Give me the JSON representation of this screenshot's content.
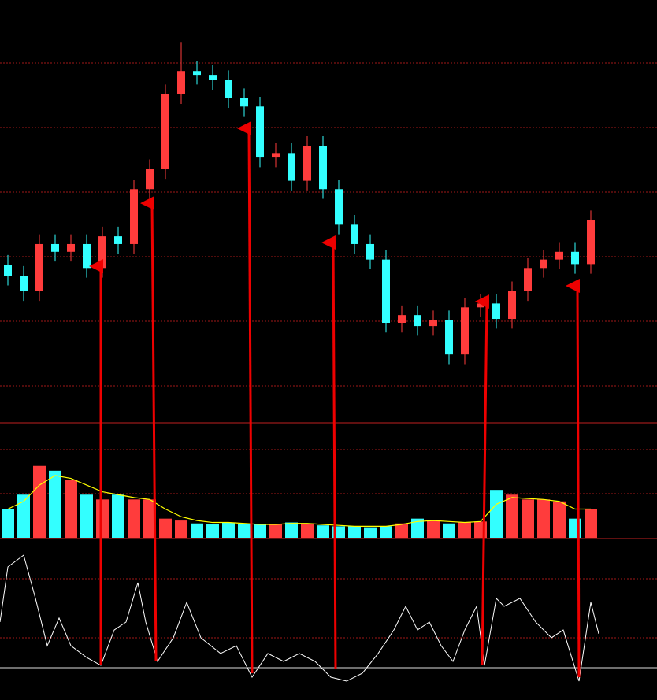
{
  "chart_data": [
    {
      "type": "candlestick",
      "xlim": [
        0,
        834
      ],
      "ylim": [
        5,
        70
      ],
      "up_color": "#ff3c3c",
      "down_color": "#33ffff",
      "x": [
        10,
        30,
        50,
        70,
        90,
        110,
        130,
        150,
        170,
        190,
        210,
        230,
        250,
        270,
        290,
        310,
        330,
        350,
        370,
        390,
        410,
        430,
        450,
        470,
        490,
        510,
        530,
        550,
        570,
        590,
        610,
        630,
        650,
        670,
        690,
        710,
        730,
        750
      ],
      "open": [
        29.0,
        27.3,
        24.9,
        32.2,
        31.0,
        32.2,
        28.5,
        33.4,
        32.2,
        40.7,
        43.8,
        55.4,
        59.0,
        58.4,
        57.6,
        54.8,
        53.5,
        45.6,
        46.3,
        42.0,
        47.4,
        40.7,
        35.2,
        32.2,
        29.8,
        20.0,
        21.2,
        19.5,
        20.4,
        15.1,
        22.4,
        23.0,
        20.6,
        24.9,
        28.5,
        29.8,
        31.0,
        29.1
      ],
      "high": [
        30.5,
        28.8,
        33.7,
        33.7,
        33.7,
        33.7,
        34.9,
        34.9,
        42.2,
        45.3,
        56.9,
        63.5,
        60.5,
        59.9,
        59.1,
        56.3,
        55.0,
        47.8,
        47.8,
        48.9,
        48.9,
        42.2,
        36.7,
        33.7,
        31.3,
        22.7,
        22.7,
        21.9,
        21.9,
        23.9,
        24.5,
        24.5,
        26.4,
        30.0,
        31.3,
        32.5,
        32.5,
        37.4
      ],
      "low": [
        25.8,
        23.4,
        23.4,
        29.5,
        29.5,
        27.0,
        27.0,
        30.7,
        30.7,
        39.2,
        42.3,
        53.9,
        56.9,
        56.1,
        53.3,
        52.0,
        44.1,
        44.1,
        40.5,
        40.5,
        39.2,
        33.7,
        30.7,
        28.3,
        18.5,
        18.5,
        18.0,
        18.0,
        13.6,
        13.6,
        20.9,
        19.1,
        19.1,
        23.4,
        27.0,
        28.3,
        27.6,
        27.6
      ],
      "close": [
        27.3,
        24.9,
        32.2,
        31.0,
        32.2,
        28.5,
        33.4,
        32.2,
        40.7,
        43.8,
        55.4,
        59.0,
        58.4,
        57.6,
        54.8,
        53.5,
        45.6,
        46.3,
        42.0,
        47.4,
        40.7,
        35.2,
        32.2,
        29.8,
        20.0,
        21.2,
        19.5,
        20.4,
        15.1,
        22.4,
        23.0,
        20.6,
        24.9,
        28.5,
        29.8,
        31.0,
        29.1,
        35.9
      ]
    },
    {
      "type": "bar",
      "xlim": [
        0,
        834
      ],
      "ylim": [
        0,
        120
      ],
      "x": [
        10,
        30,
        50,
        70,
        90,
        110,
        130,
        150,
        170,
        190,
        210,
        230,
        250,
        270,
        290,
        310,
        330,
        350,
        370,
        390,
        410,
        430,
        450,
        470,
        490,
        510,
        530,
        550,
        570,
        590,
        610,
        630,
        650,
        670,
        690,
        710,
        730,
        750
      ],
      "series": [
        {
          "type": "bar",
          "values": [
            30,
            45,
            75,
            70,
            60,
            45,
            40,
            45,
            40,
            40,
            20,
            18,
            15,
            14,
            16,
            14,
            14,
            14,
            16,
            15,
            13,
            12,
            12,
            11,
            12,
            15,
            20,
            18,
            15,
            16,
            17,
            50,
            45,
            40,
            40,
            38,
            20,
            30
          ],
          "colors": [
            "#33ffff",
            "#33ffff",
            "#ff3c3c",
            "#33ffff",
            "#ff3c3c",
            "#33ffff",
            "#ff3c3c",
            "#33ffff",
            "#ff3c3c",
            "#ff3c3c",
            "#ff3c3c",
            "#ff3c3c",
            "#33ffff",
            "#33ffff",
            "#33ffff",
            "#33ffff",
            "#33ffff",
            "#ff3c3c",
            "#33ffff",
            "#ff3c3c",
            "#33ffff",
            "#33ffff",
            "#33ffff",
            "#33ffff",
            "#33ffff",
            "#ff3c3c",
            "#33ffff",
            "#ff3c3c",
            "#33ffff",
            "#ff3c3c",
            "#ff3c3c",
            "#33ffff",
            "#ff3c3c",
            "#ff3c3c",
            "#ff3c3c",
            "#ff3c3c",
            "#33ffff",
            "#ff3c3c"
          ]
        },
        {
          "type": "line",
          "color": "#ffff00",
          "values": [
            30,
            38,
            55,
            65,
            62,
            55,
            48,
            45,
            42,
            40,
            30,
            22,
            18,
            16,
            16,
            15,
            14,
            14,
            15,
            15,
            14,
            13,
            12,
            12,
            12,
            14,
            17,
            18,
            17,
            16,
            17,
            35,
            42,
            41,
            40,
            38,
            30,
            30
          ]
        }
      ]
    },
    {
      "type": "line",
      "xlim": [
        0,
        834
      ],
      "ylim": [
        -20,
        100
      ],
      "color": "#ffffff",
      "x": [
        0,
        10,
        30,
        45,
        60,
        75,
        90,
        110,
        128,
        145,
        160,
        175,
        185,
        200,
        220,
        237,
        255,
        280,
        300,
        320,
        340,
        360,
        380,
        400,
        420,
        440,
        460,
        480,
        500,
        515,
        530,
        545,
        560,
        575,
        590,
        605,
        615,
        630,
        640,
        660,
        680,
        700,
        715,
        735,
        750,
        760
      ],
      "values": [
        39.2,
        86.5,
        96.6,
        59.5,
        18.9,
        42.6,
        18.9,
        8.8,
        2.0,
        32.4,
        39.2,
        73.0,
        39.2,
        5.4,
        25.7,
        56.1,
        25.7,
        12.2,
        18.9,
        -8.1,
        12.2,
        5.4,
        12.2,
        5.4,
        -8.1,
        -11.5,
        -4.7,
        12.2,
        32.4,
        52.7,
        32.4,
        39.2,
        18.9,
        5.4,
        32.4,
        52.7,
        2.0,
        59.5,
        52.7,
        59.5,
        39.2,
        25.7,
        32.4,
        -11.5,
        56.1,
        29.1
      ]
    }
  ]
}
